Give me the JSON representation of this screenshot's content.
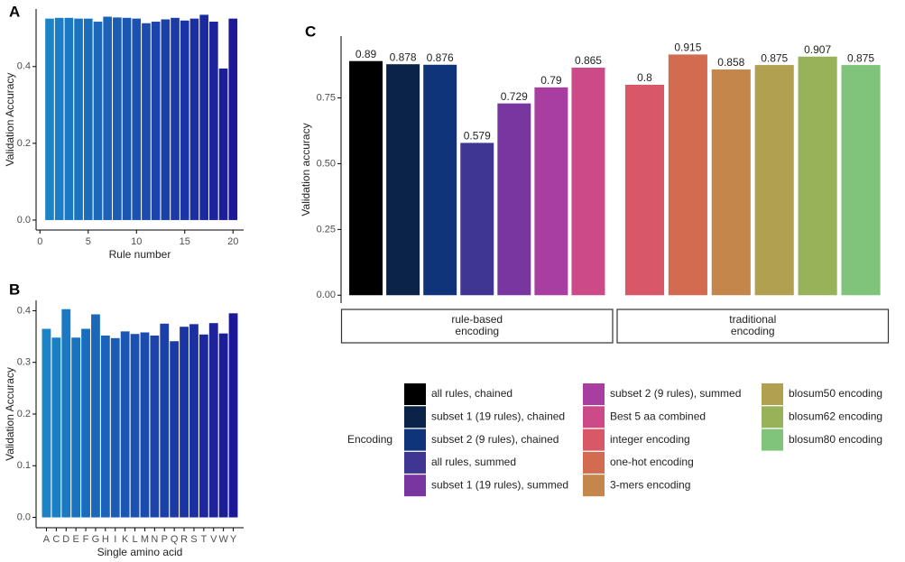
{
  "chart_data": [
    {
      "type": "bar",
      "title": "A",
      "xlabel": "Rule number",
      "ylabel": "Validation Accuracy",
      "x": [
        1,
        2,
        3,
        4,
        5,
        6,
        7,
        8,
        9,
        10,
        11,
        12,
        13,
        14,
        15,
        16,
        17,
        18,
        19,
        20
      ],
      "values": [
        0.525,
        0.527,
        0.527,
        0.525,
        0.525,
        0.517,
        0.53,
        0.528,
        0.527,
        0.525,
        0.513,
        0.517,
        0.523,
        0.527,
        0.52,
        0.525,
        0.535,
        0.517,
        0.395,
        0.525
      ],
      "color_range": [
        "#1a84c7",
        "#1c1896"
      ],
      "xlim": [
        -0.4,
        21.1
      ],
      "xticks": [
        0,
        5,
        10,
        15,
        20
      ],
      "ylim": [
        -0.026,
        0.55
      ],
      "yticks": [
        {
          "value": 0,
          "label": "0.0"
        },
        0.2,
        0.4
      ]
    },
    {
      "type": "bar",
      "title": "B",
      "xlabel": "Single amino acid",
      "ylabel": "Validation Accuracy",
      "categories": [
        "A",
        "C",
        "D",
        "E",
        "F",
        "G",
        "H",
        "I",
        "K",
        "L",
        "M",
        "N",
        "P",
        "Q",
        "R",
        "S",
        "T",
        "V",
        "W",
        "Y"
      ],
      "values": [
        0.365,
        0.348,
        0.403,
        0.348,
        0.365,
        0.393,
        0.352,
        0.347,
        0.36,
        0.355,
        0.358,
        0.352,
        0.375,
        0.341,
        0.369,
        0.374,
        0.354,
        0.376,
        0.356,
        0.395
      ],
      "color_range": [
        "#1a84c7",
        "#1c1896"
      ],
      "ylim": [
        -0.02,
        0.42
      ],
      "yticks": [
        {
          "value": 0,
          "label": "0.0"
        },
        0.1,
        0.2,
        0.3,
        0.4
      ]
    },
    {
      "type": "bar",
      "title": "C",
      "ylabel": "Validation accuracy",
      "legend_title": "Encoding",
      "facets": [
        {
          "label": [
            "rule-based",
            "encoding"
          ],
          "categories": [
            "all rules, chained",
            "subset 1 (19 rules), chained",
            "subset 2 (9 rules), chained",
            "all rules, summed",
            "subset 1 (19 rules), summed",
            "subset 2 (9 rules), summed",
            "Best 5 aa combined"
          ],
          "values": [
            0.89,
            0.878,
            0.876,
            0.579,
            0.729,
            0.79,
            0.865
          ],
          "colors": [
            "#000000",
            "#0a2346",
            "#10347a",
            "#3f3592",
            "#7a36a0",
            "#a83ea0",
            "#cc4a87"
          ]
        },
        {
          "label": [
            "traditional",
            "encoding"
          ],
          "categories": [
            "integer encoding",
            "one-hot encoding",
            "3-mers encoding",
            "blosum50 encoding",
            "blosum62 encoding",
            "blosum80 encoding"
          ],
          "values": [
            0.8,
            0.915,
            0.858,
            0.875,
            0.907,
            0.875
          ],
          "colors": [
            "#d85868",
            "#d26b50",
            "#c4864a",
            "#b0a050",
            "#98b25a",
            "#80c47c"
          ]
        }
      ],
      "ylim": [
        -0.03,
        0.985
      ],
      "yticks": [
        {
          "value": 0,
          "label": "0.00"
        },
        {
          "value": 0.25,
          "label": "0.25"
        },
        {
          "value": 0.5,
          "label": "0.50"
        },
        {
          "value": 0.75,
          "label": "0.75"
        }
      ]
    }
  ]
}
